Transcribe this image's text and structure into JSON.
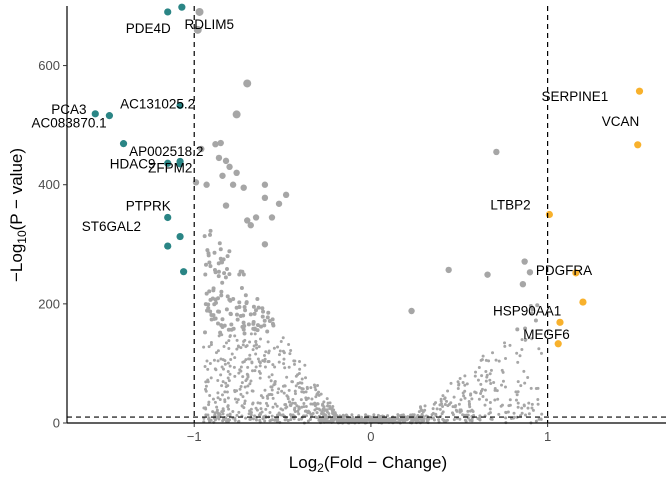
{
  "chart_data": {
    "type": "scatter",
    "title": "",
    "xlabel": "Log2(Fold − Change)",
    "ylabel": "−Log10(P − value)",
    "xlim": [
      -1.72,
      1.67
    ],
    "ylim": [
      0,
      700
    ],
    "x_ticks": [
      -1,
      0,
      1
    ],
    "y_ticks": [
      0,
      200,
      400,
      600
    ],
    "thresholds": {
      "fc": [
        -1,
        1
      ],
      "pvalue_line": 10
    },
    "grid": false,
    "legend": "none",
    "colors": {
      "down": "#2a8585",
      "up": "#f8b12c",
      "ns": "#a6a6a6"
    },
    "down_regulated": [
      {
        "name": "PDE4D",
        "x": -1.15,
        "y": 690
      },
      {
        "name": "",
        "x": -1.07,
        "y": 698
      },
      {
        "name": "PCA3",
        "x": -1.56,
        "y": 519
      },
      {
        "name": "",
        "x": -1.48,
        "y": 516
      },
      {
        "name": "AC131025.2",
        "x": -1.08,
        "y": 533
      },
      {
        "name": "AC083870.1",
        "x": -1.4,
        "y": 469
      },
      {
        "name": "HDAC9",
        "x": -1.15,
        "y": 436
      },
      {
        "name": "ZFPM2",
        "x": -1.08,
        "y": 439
      },
      {
        "name": "AP002518.2",
        "x": -1.08,
        "y": 435
      },
      {
        "name": "PTPRK",
        "x": -1.15,
        "y": 345
      },
      {
        "name": "",
        "x": -1.08,
        "y": 313
      },
      {
        "name": "ST6GAL2",
        "x": -1.15,
        "y": 297
      },
      {
        "name": "",
        "x": -1.06,
        "y": 254
      }
    ],
    "up_regulated": [
      {
        "name": "SERPINE1",
        "x": 1.52,
        "y": 557
      },
      {
        "name": "VCAN",
        "x": 1.51,
        "y": 467
      },
      {
        "name": "LTBP2",
        "x": 1.01,
        "y": 350
      },
      {
        "name": "PDGFRA",
        "x": 1.16,
        "y": 252
      },
      {
        "name": "",
        "x": 1.2,
        "y": 203
      },
      {
        "name": "HSP90AA1",
        "x": 1.07,
        "y": 169
      },
      {
        "name": "MEGF6",
        "x": 1.06,
        "y": 133
      }
    ],
    "ns_labeled": [
      {
        "name": "RDLIM5",
        "x": -0.97,
        "y": 690
      },
      {
        "name": "",
        "x": -0.98,
        "y": 660
      },
      {
        "name": "",
        "x": -0.7,
        "y": 570
      },
      {
        "name": "",
        "x": -0.76,
        "y": 518
      }
    ],
    "ns_large": [
      [
        -0.85,
        470
      ],
      [
        -0.88,
        468
      ],
      [
        -0.82,
        440
      ],
      [
        -0.86,
        445
      ],
      [
        -0.8,
        430
      ],
      [
        -0.76,
        420
      ],
      [
        -0.84,
        415
      ],
      [
        -0.78,
        400
      ],
      [
        -0.72,
        395
      ],
      [
        -0.6,
        400
      ],
      [
        -0.6,
        378
      ],
      [
        -0.48,
        383
      ],
      [
        -0.52,
        368
      ],
      [
        -0.56,
        345
      ],
      [
        -0.65,
        345
      ],
      [
        -0.68,
        332
      ],
      [
        -0.7,
        340
      ],
      [
        -0.82,
        365
      ],
      [
        -0.93,
        400
      ],
      [
        -0.99,
        404
      ],
      [
        -0.96,
        460
      ],
      [
        -0.6,
        300
      ],
      [
        0.71,
        455
      ],
      [
        0.44,
        257
      ],
      [
        0.66,
        249
      ],
      [
        0.87,
        271
      ],
      [
        0.9,
        253
      ],
      [
        0.86,
        233
      ],
      [
        0.23,
        188
      ]
    ],
    "ns_summary": "several hundred small points spread in a V shape from (-0.95, 300) down to (0, 0) and up to (0.95, 220)"
  }
}
